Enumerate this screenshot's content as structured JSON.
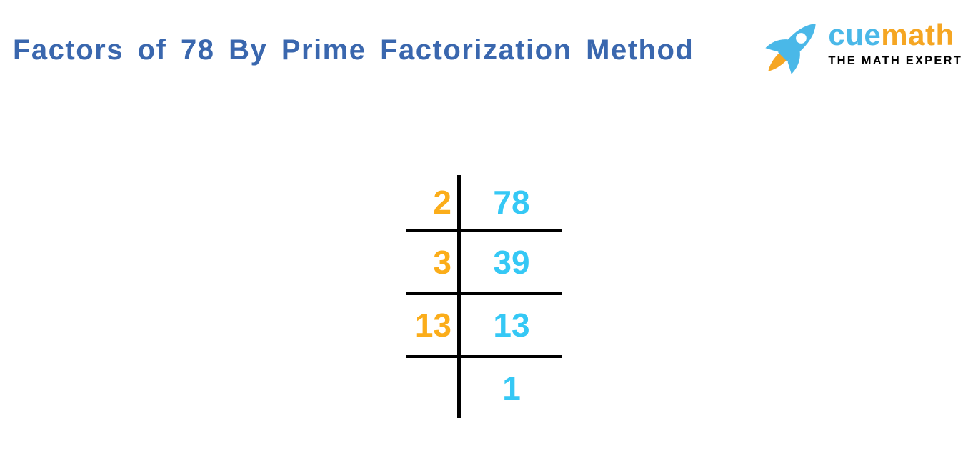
{
  "header": {
    "title": "Factors of 78 By Prime Factorization Method"
  },
  "logo": {
    "icon": "rocket-icon",
    "brand_part1": "cue",
    "brand_part2": "math",
    "tagline": "THE MATH EXPERT"
  },
  "ladder": {
    "description": "Prime factorization of 78 by division ladder",
    "rows": [
      {
        "divisor": "2",
        "quotient": "78"
      },
      {
        "divisor": "3",
        "quotient": "39"
      },
      {
        "divisor": "13",
        "quotient": "13"
      },
      {
        "divisor": "",
        "quotient": "1"
      }
    ]
  },
  "colors": {
    "title": "#3A67AE",
    "divisor": "#FBAD1A",
    "quotient": "#35C8F5",
    "line": "#000000",
    "logo_blue": "#4AB8E8",
    "logo_orange": "#F5A623",
    "tagline": "#000000"
  }
}
